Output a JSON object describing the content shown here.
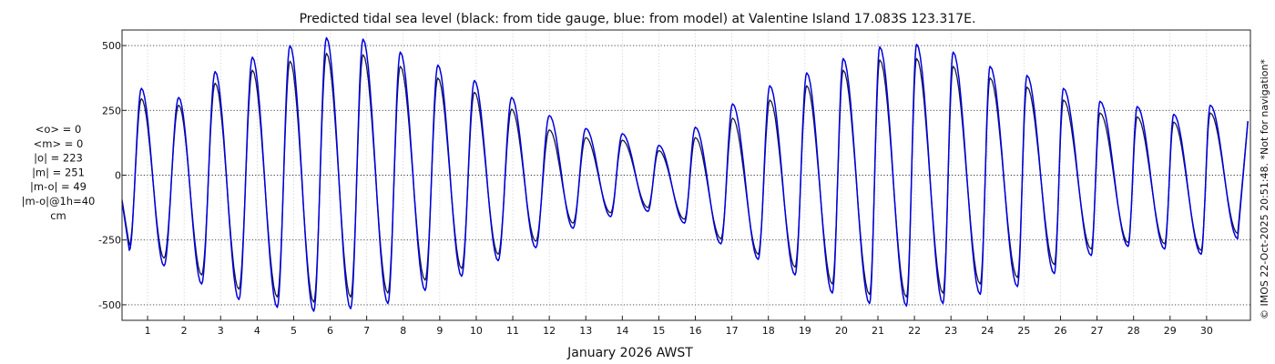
{
  "chart_data": {
    "type": "line",
    "title": "Predicted tidal sea level (black: from tide gauge, blue: from model) at Valentine Island 17.083S 123.317E.",
    "xlabel": "January 2026 AWST",
    "ylabel": "",
    "x_unit": "day of January 2026",
    "xlim": [
      0.3,
      31.2
    ],
    "ylim": [
      -560,
      560
    ],
    "xticks": [
      1,
      2,
      3,
      4,
      5,
      6,
      7,
      8,
      9,
      10,
      11,
      12,
      13,
      14,
      15,
      16,
      17,
      18,
      19,
      20,
      21,
      22,
      23,
      24,
      25,
      26,
      27,
      28,
      29,
      30
    ],
    "yticks": [
      -500,
      -250,
      0,
      250,
      500
    ],
    "ytick_labels": [
      "-500",
      "-250",
      "0",
      "250",
      "500"
    ],
    "grid": true,
    "series": [
      {
        "name": "tide gauge",
        "color": "#1a1a40",
        "model": "diurnal inequality tidal signal, amplitude varying with spring-neap cycle",
        "peaks": [
          {
            "x": 0.83,
            "y": 295
          },
          {
            "x": 1.85,
            "y": 270
          },
          {
            "x": 2.85,
            "y": 355
          },
          {
            "x": 3.87,
            "y": 405
          },
          {
            "x": 4.9,
            "y": 440
          },
          {
            "x": 5.9,
            "y": 470
          },
          {
            "x": 6.9,
            "y": 465
          },
          {
            "x": 7.92,
            "y": 420
          },
          {
            "x": 8.95,
            "y": 375
          },
          {
            "x": 9.95,
            "y": 320
          },
          {
            "x": 10.97,
            "y": 255
          },
          {
            "x": 12.0,
            "y": 175
          },
          {
            "x": 13.0,
            "y": 145
          },
          {
            "x": 14.0,
            "y": 135
          },
          {
            "x": 15.0,
            "y": 95
          },
          {
            "x": 16.0,
            "y": 145
          },
          {
            "x": 17.02,
            "y": 220
          },
          {
            "x": 18.04,
            "y": 290
          },
          {
            "x": 19.05,
            "y": 345
          },
          {
            "x": 20.05,
            "y": 405
          },
          {
            "x": 21.05,
            "y": 445
          },
          {
            "x": 22.06,
            "y": 450
          },
          {
            "x": 23.06,
            "y": 420
          },
          {
            "x": 24.07,
            "y": 375
          },
          {
            "x": 25.08,
            "y": 340
          },
          {
            "x": 26.08,
            "y": 290
          },
          {
            "x": 27.08,
            "y": 240
          },
          {
            "x": 28.1,
            "y": 225
          },
          {
            "x": 29.1,
            "y": 205
          },
          {
            "x": 30.1,
            "y": 240
          }
        ],
        "troughs": [
          {
            "x": 0.5,
            "y": -270
          },
          {
            "x": 1.45,
            "y": -320
          },
          {
            "x": 2.48,
            "y": -385
          },
          {
            "x": 3.5,
            "y": -440
          },
          {
            "x": 4.55,
            "y": -470
          },
          {
            "x": 5.55,
            "y": -490
          },
          {
            "x": 6.56,
            "y": -470
          },
          {
            "x": 7.58,
            "y": -455
          },
          {
            "x": 8.6,
            "y": -405
          },
          {
            "x": 9.6,
            "y": -360
          },
          {
            "x": 10.6,
            "y": -305
          },
          {
            "x": 11.63,
            "y": -255
          },
          {
            "x": 12.65,
            "y": -185
          },
          {
            "x": 13.68,
            "y": -145
          },
          {
            "x": 14.7,
            "y": -125
          },
          {
            "x": 15.7,
            "y": -170
          },
          {
            "x": 16.7,
            "y": -245
          },
          {
            "x": 17.72,
            "y": -305
          },
          {
            "x": 18.73,
            "y": -355
          },
          {
            "x": 19.75,
            "y": -420
          },
          {
            "x": 20.77,
            "y": -460
          },
          {
            "x": 21.78,
            "y": -470
          },
          {
            "x": 22.78,
            "y": -455
          },
          {
            "x": 23.8,
            "y": -420
          },
          {
            "x": 24.82,
            "y": -395
          },
          {
            "x": 25.83,
            "y": -345
          },
          {
            "x": 26.84,
            "y": -285
          },
          {
            "x": 27.85,
            "y": -260
          },
          {
            "x": 28.85,
            "y": -265
          },
          {
            "x": 29.85,
            "y": -290
          },
          {
            "x": 30.85,
            "y": -225
          }
        ]
      },
      {
        "name": "model",
        "color": "#0000dd",
        "model": "diurnal inequality tidal signal, amplitude varying with spring-neap cycle",
        "peaks": [
          {
            "x": 0.83,
            "y": 335
          },
          {
            "x": 1.85,
            "y": 300
          },
          {
            "x": 2.85,
            "y": 400
          },
          {
            "x": 3.87,
            "y": 455
          },
          {
            "x": 4.9,
            "y": 500
          },
          {
            "x": 5.9,
            "y": 530
          },
          {
            "x": 6.9,
            "y": 525
          },
          {
            "x": 7.92,
            "y": 475
          },
          {
            "x": 8.95,
            "y": 425
          },
          {
            "x": 9.95,
            "y": 365
          },
          {
            "x": 10.97,
            "y": 300
          },
          {
            "x": 12.0,
            "y": 230
          },
          {
            "x": 13.0,
            "y": 180
          },
          {
            "x": 14.0,
            "y": 160
          },
          {
            "x": 15.0,
            "y": 115
          },
          {
            "x": 16.0,
            "y": 185
          },
          {
            "x": 17.02,
            "y": 275
          },
          {
            "x": 18.04,
            "y": 345
          },
          {
            "x": 19.05,
            "y": 395
          },
          {
            "x": 20.05,
            "y": 450
          },
          {
            "x": 21.05,
            "y": 495
          },
          {
            "x": 22.06,
            "y": 505
          },
          {
            "x": 23.06,
            "y": 475
          },
          {
            "x": 24.07,
            "y": 420
          },
          {
            "x": 25.08,
            "y": 385
          },
          {
            "x": 26.08,
            "y": 335
          },
          {
            "x": 27.08,
            "y": 285
          },
          {
            "x": 28.1,
            "y": 265
          },
          {
            "x": 29.1,
            "y": 235
          },
          {
            "x": 30.1,
            "y": 270
          }
        ],
        "troughs": [
          {
            "x": 0.5,
            "y": -290
          },
          {
            "x": 1.45,
            "y": -350
          },
          {
            "x": 2.48,
            "y": -420
          },
          {
            "x": 3.5,
            "y": -480
          },
          {
            "x": 4.55,
            "y": -510
          },
          {
            "x": 5.55,
            "y": -525
          },
          {
            "x": 6.56,
            "y": -515
          },
          {
            "x": 7.58,
            "y": -495
          },
          {
            "x": 8.6,
            "y": -445
          },
          {
            "x": 9.6,
            "y": -390
          },
          {
            "x": 10.6,
            "y": -330
          },
          {
            "x": 11.63,
            "y": -280
          },
          {
            "x": 12.65,
            "y": -205
          },
          {
            "x": 13.68,
            "y": -160
          },
          {
            "x": 14.7,
            "y": -140
          },
          {
            "x": 15.7,
            "y": -185
          },
          {
            "x": 16.7,
            "y": -265
          },
          {
            "x": 17.72,
            "y": -325
          },
          {
            "x": 18.73,
            "y": -385
          },
          {
            "x": 19.75,
            "y": -455
          },
          {
            "x": 20.77,
            "y": -495
          },
          {
            "x": 21.78,
            "y": -505
          },
          {
            "x": 22.78,
            "y": -495
          },
          {
            "x": 23.8,
            "y": -460
          },
          {
            "x": 24.82,
            "y": -430
          },
          {
            "x": 25.83,
            "y": -380
          },
          {
            "x": 26.84,
            "y": -310
          },
          {
            "x": 27.85,
            "y": -275
          },
          {
            "x": 28.85,
            "y": -285
          },
          {
            "x": 29.85,
            "y": -305
          },
          {
            "x": 30.85,
            "y": -245
          }
        ]
      }
    ],
    "stats": [
      "<o> = 0",
      "<m> = 0",
      "|o| = 223",
      "|m| = 251",
      "|m-o| = 49",
      "|m-o|@1h=40",
      "cm"
    ],
    "side_text": "© IMOS 22-Oct-2025 20:51:48. *Not for navigation*"
  }
}
